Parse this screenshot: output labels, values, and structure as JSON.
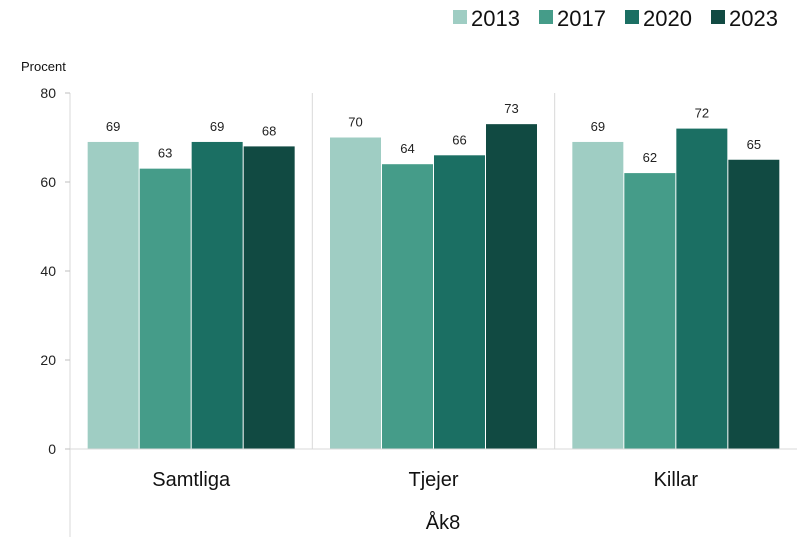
{
  "chart_data": {
    "type": "bar",
    "ylabel": "Procent",
    "ylim": [
      0,
      80
    ],
    "yticks": [
      0,
      20,
      40,
      60,
      80
    ],
    "group_label": "Åk8",
    "categories": [
      "Samtliga",
      "Tjejer",
      "Killar"
    ],
    "series": [
      {
        "name": "2013",
        "color": "#9fcdc3",
        "values": [
          69,
          70,
          69
        ]
      },
      {
        "name": "2017",
        "color": "#459c89",
        "values": [
          63,
          64,
          62
        ]
      },
      {
        "name": "2020",
        "color": "#1b6f63",
        "values": [
          69,
          66,
          72
        ]
      },
      {
        "name": "2023",
        "color": "#114a42",
        "values": [
          68,
          73,
          65
        ]
      }
    ],
    "legend_position": "top-right",
    "grid": false
  }
}
